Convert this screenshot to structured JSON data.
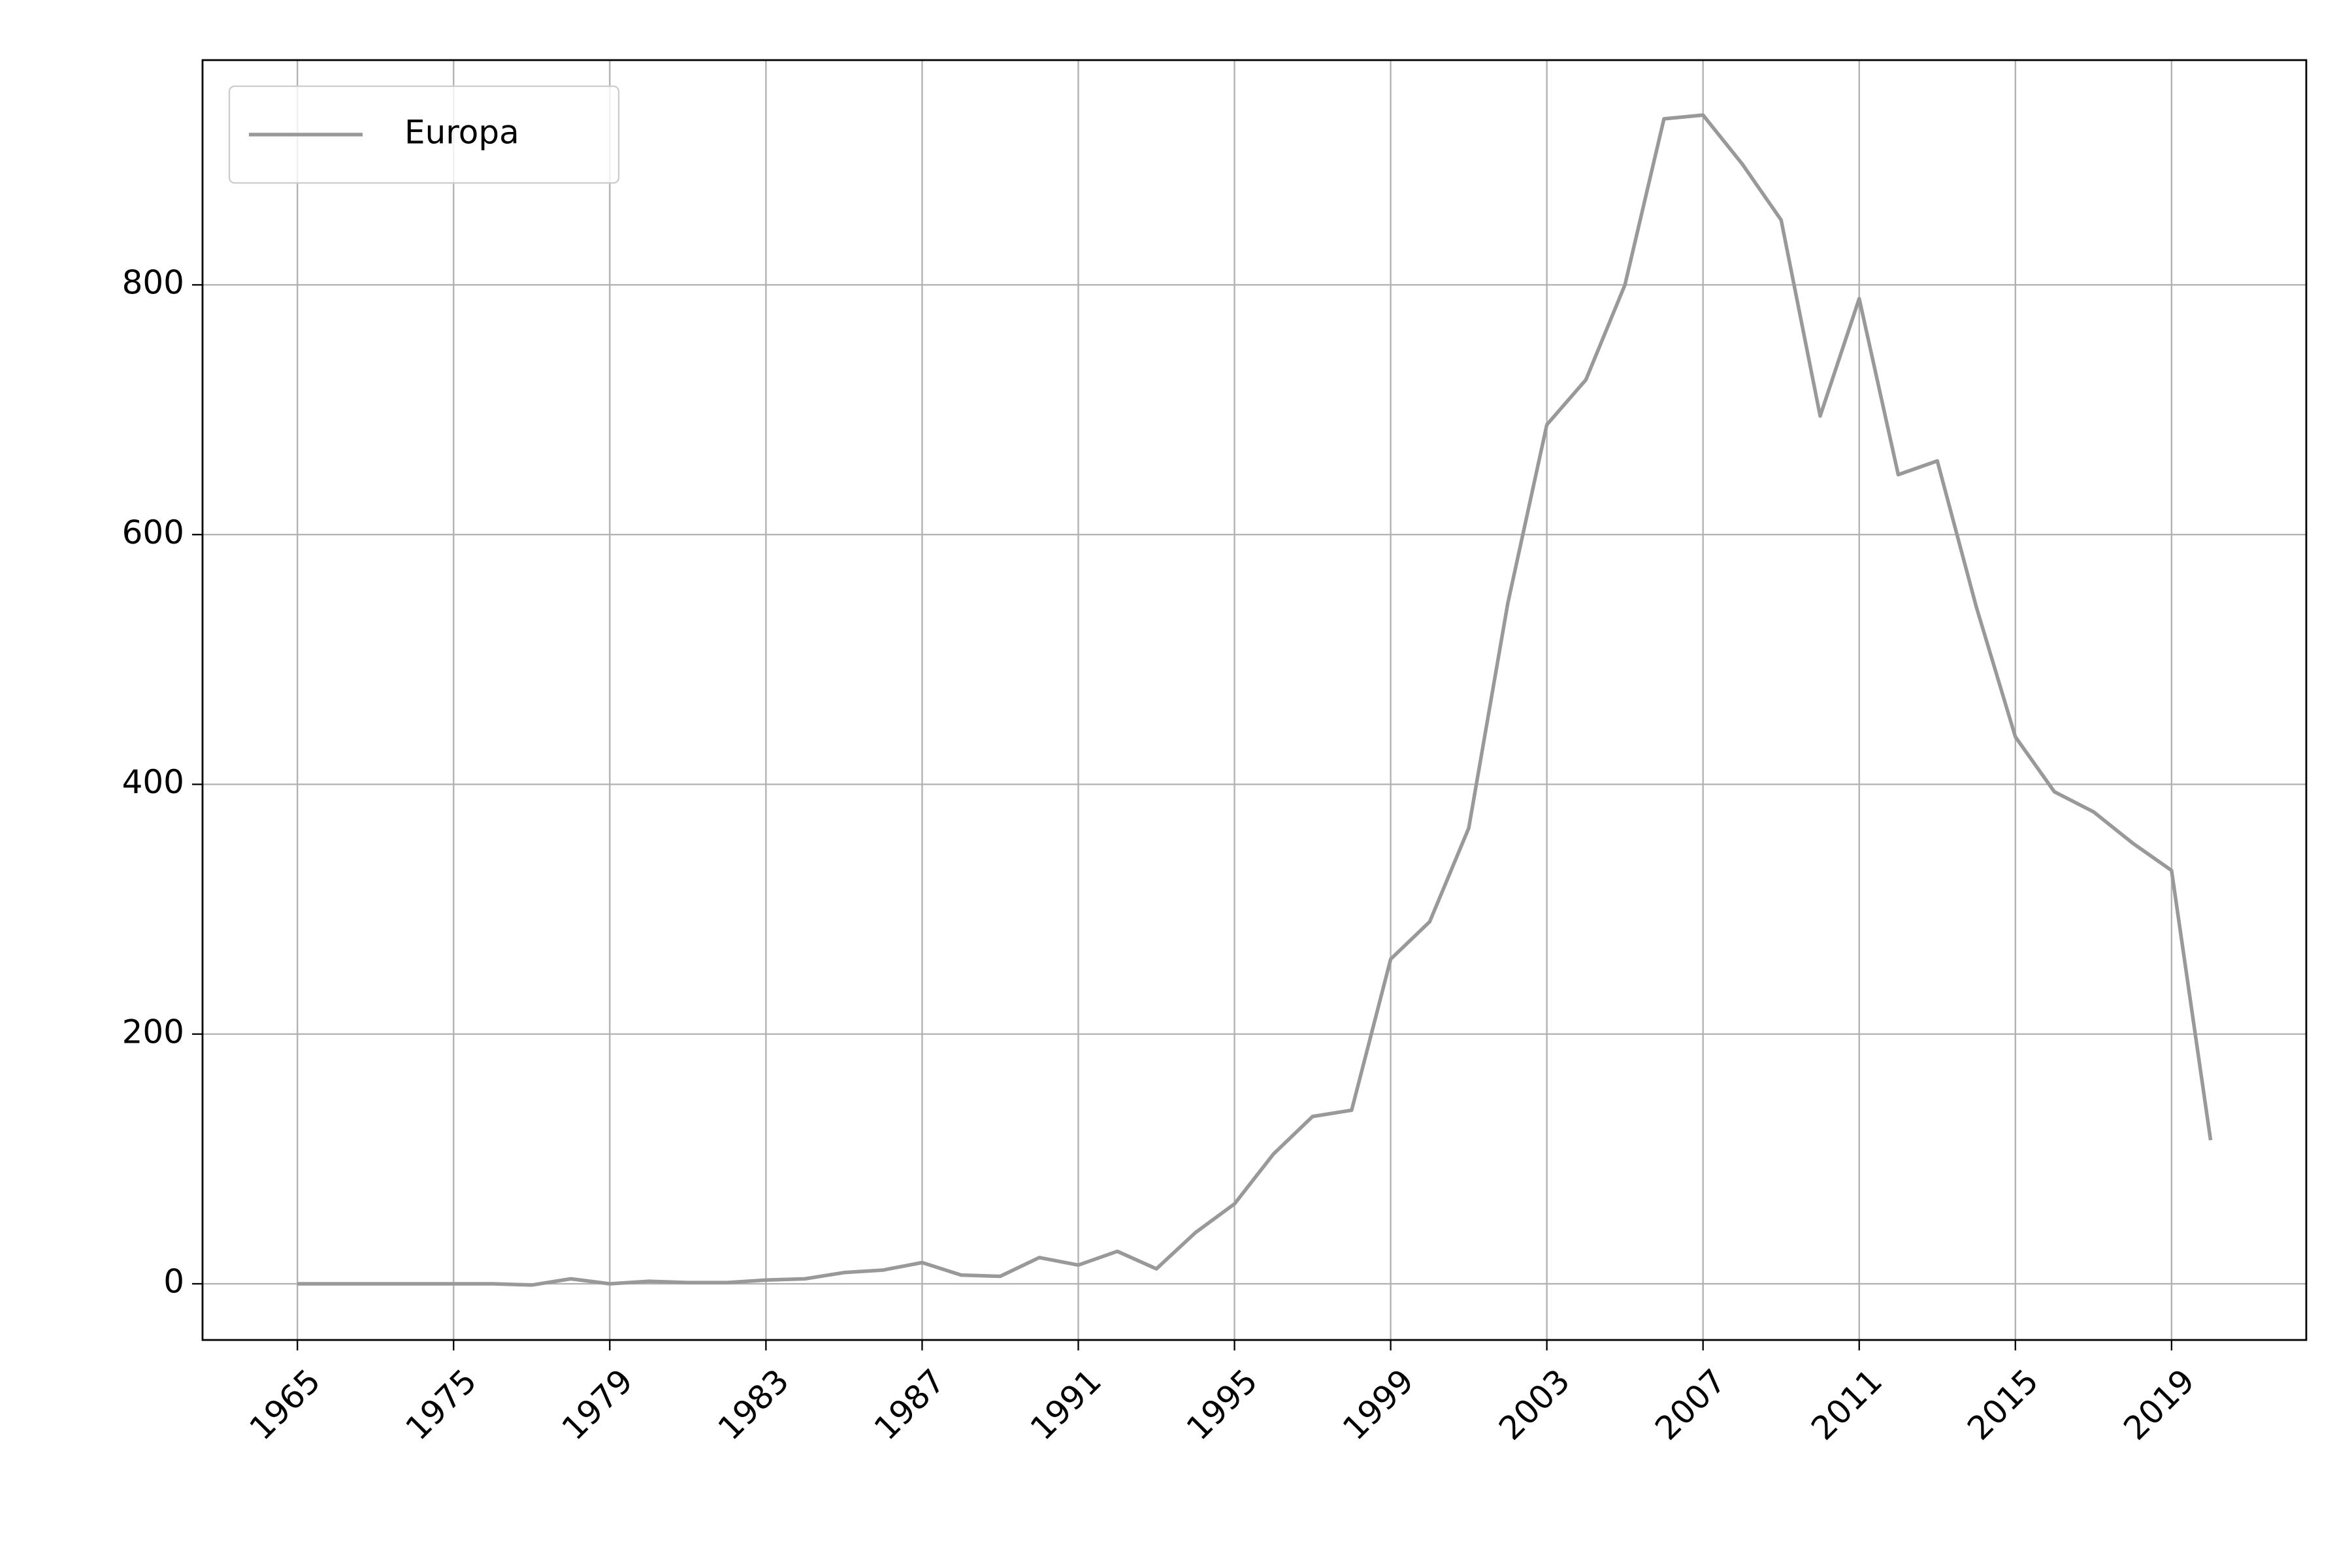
{
  "chart_data": {
    "type": "line",
    "categories": [
      "1965",
      null,
      null,
      null,
      "1975",
      null,
      null,
      null,
      "1979",
      null,
      null,
      null,
      "1983",
      null,
      null,
      null,
      "1987",
      null,
      null,
      null,
      "1991",
      null,
      null,
      null,
      "1995",
      null,
      null,
      null,
      "1999",
      null,
      null,
      null,
      "2003",
      null,
      null,
      null,
      "2007",
      null,
      null,
      null,
      "2011",
      null,
      null,
      null,
      "2015",
      null,
      null,
      null,
      "2019",
      null
    ],
    "series": [
      {
        "name": "Europa",
        "color": "#999999",
        "values": [
          0,
          0,
          0,
          0,
          0,
          0,
          -1,
          4,
          0,
          2,
          1,
          1,
          3,
          4,
          9,
          11,
          17,
          7,
          6,
          21,
          15,
          26,
          12,
          41,
          64,
          104,
          134,
          139,
          260,
          290,
          365,
          545,
          688,
          724,
          800,
          933,
          936,
          897,
          852,
          695,
          789,
          648,
          659,
          542,
          438,
          394,
          378,
          353,
          331,
          115
        ]
      }
    ],
    "ylim": [
      -45,
      980
    ],
    "yticks": [
      0,
      200,
      400,
      600,
      800
    ],
    "grid": true,
    "legend": "upper left"
  }
}
